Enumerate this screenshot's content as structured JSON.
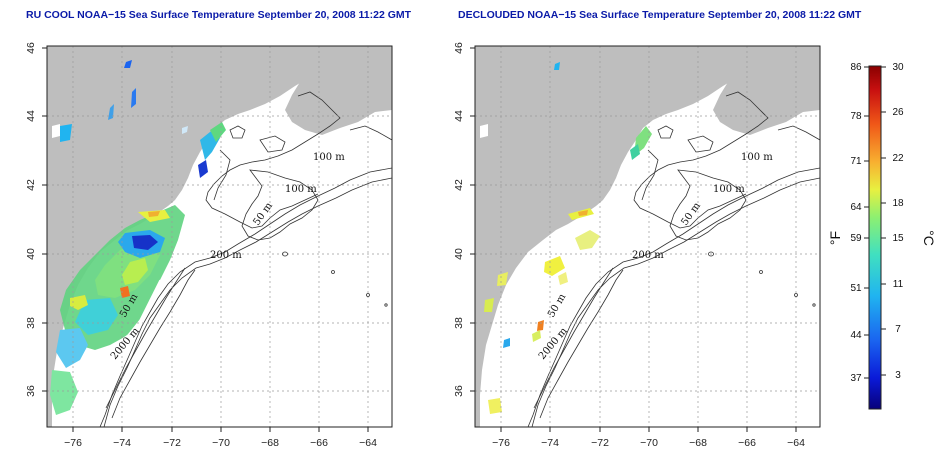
{
  "panels": [
    {
      "title": "RU COOL NOAA−15 Sea Surface Temperature September 20, 2008 11:22 GMT",
      "contour_labels": [
        "100 m",
        "100 m",
        "50 m",
        "200 m",
        "50 m",
        "2000 m"
      ]
    },
    {
      "title": "DECLOUDED NOAA−15 Sea Surface Temperature September 20, 2008 11:22 GMT",
      "contour_labels": [
        "100 m",
        "100 m",
        "50 m",
        "200 m",
        "50 m",
        "2000 m"
      ]
    }
  ],
  "lon_ticks": [
    "−76",
    "−74",
    "−72",
    "−70",
    "−68",
    "−66",
    "−64"
  ],
  "lat_ticks": [
    "36",
    "38",
    "40",
    "42",
    "44",
    "46"
  ],
  "colorbar": {
    "fahrenheit_ticks": [
      "86",
      "78",
      "71",
      "64",
      "59",
      "51",
      "44",
      "37"
    ],
    "celsius_ticks": [
      "30",
      "26",
      "22",
      "18",
      "15",
      "11",
      "7",
      "3"
    ],
    "fahrenheit_label": "°F",
    "celsius_label": "°C",
    "colors": [
      "#08007a",
      "#0a1ad8",
      "#1a64f0",
      "#20b4f0",
      "#40e0c0",
      "#8ef070",
      "#e8f040",
      "#f8b030",
      "#f05818",
      "#c81010",
      "#8a0000"
    ]
  },
  "colors": {
    "land": "#bebebe",
    "title": "#0a1aa8",
    "grid": "#9a9a9a"
  }
}
